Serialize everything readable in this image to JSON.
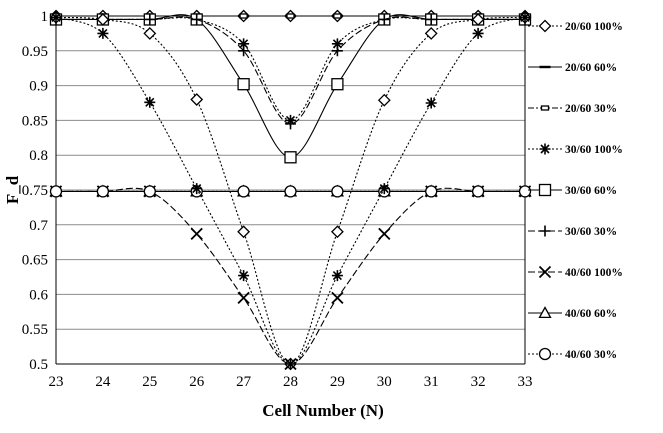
{
  "chart_data": {
    "type": "line",
    "title": "",
    "xlabel": "Cell Number (N)",
    "ylabel": "F_d",
    "xlim": [
      23,
      33
    ],
    "ylim": [
      0.5,
      1
    ],
    "x_ticks": [
      "23",
      "24",
      "25",
      "26",
      "27",
      "28",
      "29",
      "30",
      "31",
      "32",
      "33"
    ],
    "y_ticks": [
      "0.5",
      "0.55",
      "0.6",
      "0.65",
      "0.7",
      "0.75",
      "0.8",
      "0.85",
      "0.9",
      "0.95",
      "1"
    ],
    "grid": "horizontal",
    "legend_position": "right",
    "series": [
      {
        "name": "20/60 100%",
        "marker": "diamond",
        "dash": "2,2",
        "x": [
          23,
          24,
          25,
          26,
          27,
          28,
          29,
          30,
          31,
          32,
          33
        ],
        "y": [
          1,
          1,
          1,
          1,
          1,
          1,
          1,
          1,
          1,
          1,
          1
        ]
      },
      {
        "name": "20/60 60%",
        "marker": "dash",
        "dash": "",
        "x": [
          23,
          24,
          25,
          26,
          27,
          28,
          29,
          30,
          31,
          32,
          33
        ],
        "y": [
          1,
          1,
          1,
          1,
          1,
          1,
          1,
          1,
          1,
          1,
          1
        ]
      },
      {
        "name": "20/60 30%",
        "marker": "smallsquare",
        "dash": "6,2,2,2",
        "x": [
          23,
          24,
          25,
          26,
          27,
          28,
          29,
          30,
          31,
          32,
          33
        ],
        "y": [
          1,
          1,
          1,
          1,
          1,
          1,
          1,
          1,
          1,
          1,
          1
        ]
      },
      {
        "name": "30/60 100%",
        "marker": "asterisk",
        "dash": "2,2",
        "x": [
          23,
          24,
          25,
          26,
          27,
          28,
          29,
          30,
          31,
          32,
          33
        ],
        "y": [
          0.995,
          0.995,
          0.995,
          0.995,
          0.96,
          0.85,
          0.96,
          0.995,
          0.995,
          0.995,
          0.995
        ]
      },
      {
        "name": "30/60 60%",
        "marker": "square",
        "dash": "",
        "x": [
          23,
          24,
          25,
          26,
          27,
          28,
          29,
          30,
          31,
          32,
          33
        ],
        "y": [
          0.995,
          0.995,
          0.995,
          0.995,
          0.902,
          0.797,
          0.902,
          0.995,
          0.995,
          0.995,
          0.995
        ]
      },
      {
        "name": "30/60 30%",
        "marker": "plus",
        "dash": "7,3",
        "x": [
          23,
          24,
          25,
          26,
          27,
          28,
          29,
          30,
          31,
          32,
          33
        ],
        "y": [
          0.995,
          0.995,
          0.995,
          0.995,
          0.95,
          0.845,
          0.95,
          0.995,
          0.995,
          0.995,
          0.995
        ]
      },
      {
        "name": "40/60 100%",
        "marker": "x",
        "dash": "7,3",
        "x": [
          23,
          24,
          25,
          26,
          27,
          28,
          29,
          30,
          31,
          32,
          33
        ],
        "y": [
          0.748,
          0.748,
          0.748,
          0.687,
          0.595,
          0.5,
          0.595,
          0.687,
          0.748,
          0.748,
          0.748
        ]
      },
      {
        "name": "40/60 60%",
        "marker": "triangle",
        "dash": "",
        "x": [
          23,
          24,
          25,
          26,
          27,
          28,
          29,
          30,
          31,
          32,
          33
        ],
        "y": [
          0.748,
          0.748,
          0.748,
          0.748,
          0.748,
          0.748,
          0.748,
          0.748,
          0.748,
          0.748,
          0.748
        ]
      },
      {
        "name": "40/60 30%",
        "marker": "circle",
        "dash": "2,2",
        "x": [
          23,
          24,
          25,
          26,
          27,
          28,
          29,
          30,
          31,
          32,
          33
        ],
        "y": [
          0.748,
          0.748,
          0.748,
          0.748,
          0.748,
          0.748,
          0.748,
          0.748,
          0.748,
          0.748,
          0.748
        ]
      },
      {
        "name": "",
        "marker": "diamond",
        "dash": "2,2",
        "x": [
          23,
          24,
          25,
          26,
          27,
          28,
          29,
          30,
          31,
          32,
          33
        ],
        "y": [
          0.998,
          0.995,
          0.975,
          0.88,
          0.69,
          0.5,
          0.69,
          0.879,
          0.975,
          0.995,
          0.998
        ]
      },
      {
        "name": "",
        "marker": "asterisk",
        "dash": "2,2",
        "x": [
          23,
          24,
          25,
          26,
          27,
          28,
          29,
          30,
          31,
          32,
          33
        ],
        "y": [
          0.998,
          0.975,
          0.876,
          0.752,
          0.627,
          0.5,
          0.627,
          0.752,
          0.875,
          0.975,
          0.998
        ]
      }
    ]
  }
}
